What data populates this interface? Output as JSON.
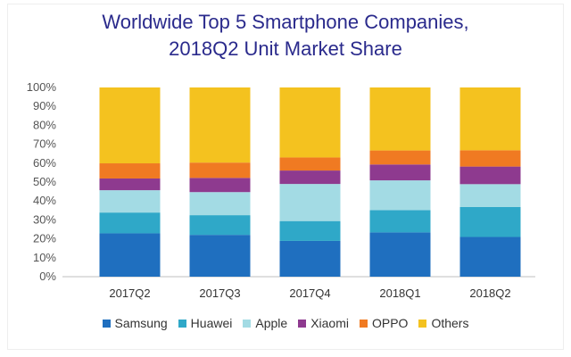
{
  "chart_data": {
    "type": "bar",
    "stacked": true,
    "title_lines": [
      "Worldwide Top 5 Smartphone Companies,",
      "2018Q2 Unit Market Share"
    ],
    "categories": [
      "2017Q2",
      "2017Q3",
      "2017Q4",
      "2018Q1",
      "2018Q2"
    ],
    "y_ticks": [
      "0%",
      "10%",
      "20%",
      "30%",
      "40%",
      "50%",
      "60%",
      "70%",
      "80%",
      "90%",
      "100%"
    ],
    "ylim": [
      0,
      100
    ],
    "grid": false,
    "legend_position": "bottom",
    "series": [
      {
        "name": "Samsung",
        "color": "#1f6fbf",
        "values": [
          22.9,
          22.1,
          18.9,
          23.4,
          21.0
        ]
      },
      {
        "name": "Huawei",
        "color": "#2fa8c8",
        "values": [
          11.0,
          10.4,
          10.5,
          11.8,
          15.8
        ]
      },
      {
        "name": "Apple",
        "color": "#a3dbe4",
        "values": [
          11.8,
          12.2,
          19.6,
          15.7,
          12.1
        ]
      },
      {
        "name": "Xiaomi",
        "color": "#8e3a8f",
        "values": [
          6.2,
          7.5,
          7.1,
          8.4,
          9.3
        ]
      },
      {
        "name": "OPPO",
        "color": "#f07a22",
        "values": [
          8.0,
          8.1,
          6.9,
          7.4,
          8.6
        ]
      },
      {
        "name": "Others",
        "color": "#f4c21f",
        "values": [
          40.1,
          39.7,
          37.0,
          33.3,
          33.2
        ]
      }
    ]
  }
}
